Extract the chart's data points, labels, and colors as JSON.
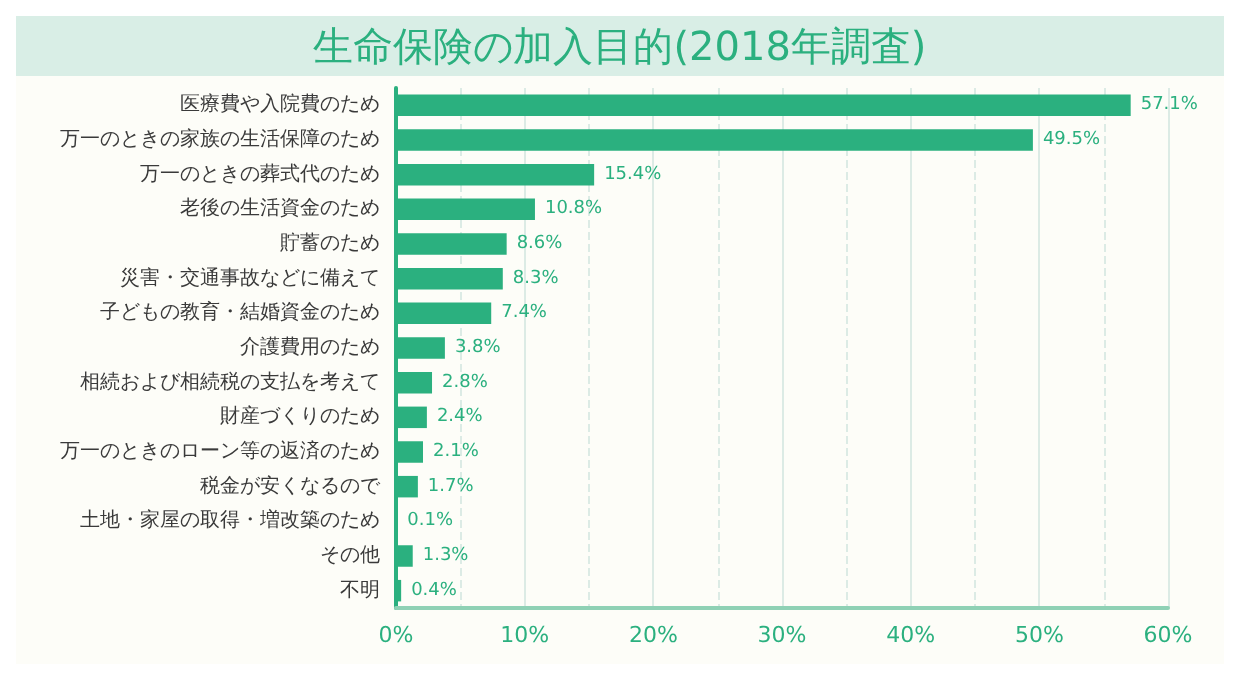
{
  "chart_data": {
    "type": "bar",
    "orientation": "horizontal",
    "title": "生命保険の加入目的(2018年調査)",
    "categories": [
      "医療費や入院費のため",
      "万一のときの家族の生活保障のため",
      "万一のときの葬式代のため",
      "老後の生活資金のため",
      "貯蓄のため",
      "災害・交通事故などに備えて",
      "子どもの教育・結婚資金のため",
      "介護費用のため",
      "相続および相続税の支払を考えて",
      "財産づくりのため",
      "万一のときのローン等の返済のため",
      "税金が安くなるので",
      "土地・家屋の取得・増改築のため",
      "その他",
      "不明"
    ],
    "values": [
      57.1,
      49.5,
      15.4,
      10.8,
      8.6,
      8.3,
      7.4,
      3.8,
      2.8,
      2.4,
      2.1,
      1.7,
      0.1,
      1.3,
      0.4
    ],
    "value_labels": [
      "57.1%",
      "49.5%",
      "15.4%",
      "10.8%",
      "8.6%",
      "8.3%",
      "7.4%",
      "3.8%",
      "2.8%",
      "2.4%",
      "2.1%",
      "1.7%",
      "0.1%",
      "1.3%",
      "0.4%"
    ],
    "color": "#2bb07f",
    "xlim": [
      0,
      60
    ],
    "xticks": [
      {
        "value": 0,
        "label": "0%"
      },
      {
        "value": 10,
        "label": "10%"
      },
      {
        "value": 20,
        "label": "20%"
      },
      {
        "value": 30,
        "label": "30%"
      },
      {
        "value": 40,
        "label": "40%"
      },
      {
        "value": 50,
        "label": "50%"
      },
      {
        "value": 60,
        "label": "60%"
      }
    ],
    "grid": "x"
  }
}
